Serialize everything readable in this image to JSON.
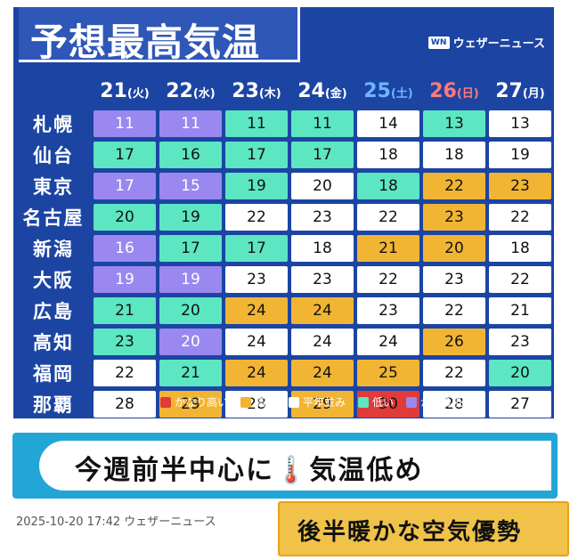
{
  "title": "予想最高気温",
  "brand": {
    "logo": "WN",
    "name": "ウェザーニュース"
  },
  "days": [
    {
      "date": "21",
      "dow": "(火)",
      "color": "#ffffff"
    },
    {
      "date": "22",
      "dow": "(水)",
      "color": "#ffffff"
    },
    {
      "date": "23",
      "dow": "(木)",
      "color": "#ffffff"
    },
    {
      "date": "24",
      "dow": "(金)",
      "color": "#ffffff"
    },
    {
      "date": "25",
      "dow": "(土)",
      "color": "#6fb4ff"
    },
    {
      "date": "26",
      "dow": "(日)",
      "color": "#ff7a7a"
    },
    {
      "date": "27",
      "dow": "(月)",
      "color": "#ffffff"
    }
  ],
  "colors": {
    "very_high": "#e03a3a",
    "high": "#f2b533",
    "normal": "#ffffff",
    "low": "#5ce6c2",
    "very_low": "#9a88f0"
  },
  "rows": [
    {
      "city": "札幌",
      "temps": [
        "11",
        "11",
        "11",
        "11",
        "14",
        "13",
        "13"
      ],
      "levels": [
        "very_low",
        "very_low",
        "low",
        "low",
        "normal",
        "low",
        "normal"
      ]
    },
    {
      "city": "仙台",
      "temps": [
        "17",
        "16",
        "17",
        "17",
        "18",
        "18",
        "19"
      ],
      "levels": [
        "low",
        "low",
        "low",
        "low",
        "normal",
        "normal",
        "normal"
      ]
    },
    {
      "city": "東京",
      "temps": [
        "17",
        "15",
        "19",
        "20",
        "18",
        "22",
        "23"
      ],
      "levels": [
        "very_low",
        "very_low",
        "low",
        "normal",
        "low",
        "high",
        "high"
      ]
    },
    {
      "city": "名古屋",
      "temps": [
        "20",
        "19",
        "22",
        "23",
        "22",
        "23",
        "22"
      ],
      "levels": [
        "low",
        "low",
        "normal",
        "normal",
        "normal",
        "high",
        "normal"
      ]
    },
    {
      "city": "新潟",
      "temps": [
        "16",
        "17",
        "17",
        "18",
        "21",
        "20",
        "18"
      ],
      "levels": [
        "very_low",
        "low",
        "low",
        "normal",
        "high",
        "high",
        "normal"
      ]
    },
    {
      "city": "大阪",
      "temps": [
        "19",
        "19",
        "23",
        "23",
        "22",
        "23",
        "22"
      ],
      "levels": [
        "very_low",
        "very_low",
        "normal",
        "normal",
        "normal",
        "normal",
        "normal"
      ]
    },
    {
      "city": "広島",
      "temps": [
        "21",
        "20",
        "24",
        "24",
        "23",
        "22",
        "21"
      ],
      "levels": [
        "low",
        "low",
        "high",
        "high",
        "normal",
        "normal",
        "normal"
      ]
    },
    {
      "city": "高知",
      "temps": [
        "23",
        "20",
        "24",
        "24",
        "24",
        "26",
        "23"
      ],
      "levels": [
        "low",
        "very_low",
        "normal",
        "normal",
        "normal",
        "high",
        "normal"
      ]
    },
    {
      "city": "福岡",
      "temps": [
        "22",
        "21",
        "24",
        "24",
        "25",
        "22",
        "20"
      ],
      "levels": [
        "normal",
        "low",
        "high",
        "high",
        "high",
        "normal",
        "low"
      ]
    },
    {
      "city": "那覇",
      "temps": [
        "28",
        "29",
        "28",
        "29",
        "30",
        "28",
        "27"
      ],
      "levels": [
        "normal",
        "high",
        "normal",
        "high",
        "very_high",
        "normal",
        "normal"
      ]
    }
  ],
  "legend": [
    {
      "label": "かなり高い",
      "level": "very_high"
    },
    {
      "label": "高い",
      "level": "high"
    },
    {
      "label": "平年並み",
      "level": "normal"
    },
    {
      "label": "低い",
      "level": "low"
    },
    {
      "label": "かなり低い",
      "level": "very_low"
    }
  ],
  "banner": "今週前半中心に🌡️気温低め",
  "timestamp": "2025-10-20 17:42 ウェザーニュース",
  "subheadline": "後半暖かな空気優勢"
}
